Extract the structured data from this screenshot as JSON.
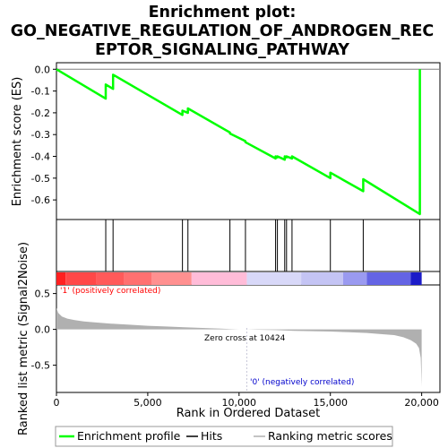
{
  "title_lines": [
    "Enrichment plot:",
    "GO_NEGATIVE_REGULATION_OF_ANDROGEN_REC",
    "EPTOR_SIGNALING_PATHWAY"
  ],
  "colors": {
    "profile": "#00ff00",
    "hits": "#000000",
    "metric": "#b0b0b0",
    "pos_label": "#ff0000",
    "neg_label": "#0000cc",
    "zero_line": "#c8c8d8"
  },
  "chart_data": {
    "type": "line",
    "xlabel": "Rank in Ordered Dataset",
    "ylabel_top": "Enrichment score (ES)",
    "ylabel_bottom": "Ranked list metric (Signal2Noise)",
    "xlim": [
      0,
      21000
    ],
    "x_ticks": [
      0,
      5000,
      10000,
      15000,
      20000
    ],
    "x_tick_labels": [
      "0",
      "5,000",
      "10,000",
      "15,000",
      "20,000"
    ],
    "es_ylim": [
      -0.69,
      0.03
    ],
    "es_ticks": [
      0.0,
      -0.1,
      -0.2,
      -0.3,
      -0.4,
      -0.5,
      -0.6
    ],
    "es_tick_labels": [
      "0.0",
      "-0.1",
      "-0.2",
      "-0.3",
      "-0.4",
      "-0.5",
      "-0.6"
    ],
    "metric_ylim": [
      -0.88,
      0.62
    ],
    "metric_ticks": [
      0.5,
      0.0,
      -0.5
    ],
    "metric_tick_labels": [
      "0.5",
      "0.0",
      "-0.5"
    ],
    "hits": [
      2700,
      3100,
      6900,
      7200,
      9500,
      10350,
      12000,
      12100,
      12500,
      12600,
      12900,
      15000,
      16800,
      19900
    ],
    "es_profile": {
      "x": [
        0,
        2700,
        2700,
        3100,
        3100,
        6900,
        6900,
        7200,
        7200,
        9500,
        9500,
        10350,
        10350,
        12000,
        12000,
        12100,
        12100,
        12500,
        12500,
        12600,
        12600,
        12900,
        12900,
        15000,
        15000,
        16800,
        16800,
        19900,
        19900
      ],
      "y": [
        0.0,
        -0.135,
        -0.07,
        -0.09,
        -0.025,
        -0.21,
        -0.19,
        -0.2,
        -0.18,
        -0.29,
        -0.295,
        -0.33,
        -0.335,
        -0.41,
        -0.4,
        -0.405,
        -0.4,
        -0.415,
        -0.4,
        -0.405,
        -0.4,
        -0.41,
        -0.4,
        -0.5,
        -0.475,
        -0.56,
        -0.505,
        -0.665,
        0.0
      ]
    },
    "metric_curve": {
      "x": [
        0,
        100,
        300,
        600,
        1000,
        1500,
        2000,
        3000,
        4000,
        5000,
        6000,
        7000,
        8000,
        9000,
        10000,
        10424,
        11000,
        12000,
        13000,
        14000,
        15000,
        16000,
        17000,
        18000,
        18500,
        19000,
        19400,
        19700,
        19850,
        19950,
        20000
      ],
      "y": [
        0.3,
        0.23,
        0.18,
        0.15,
        0.13,
        0.11,
        0.1,
        0.08,
        0.065,
        0.05,
        0.04,
        0.03,
        0.02,
        0.01,
        0.0,
        0.0,
        -0.005,
        -0.01,
        -0.02,
        -0.025,
        -0.03,
        -0.04,
        -0.05,
        -0.07,
        -0.08,
        -0.11,
        -0.15,
        -0.2,
        -0.26,
        -0.4,
        -0.8
      ]
    },
    "zero_cross_label": "Zero cross at 10424",
    "zero_cross_x": 10424,
    "pos_label": "'1' (positively correlated)",
    "neg_label": "'0' (negatively correlated)",
    "heatmap_segments": [
      {
        "x0": 0,
        "x1": 500,
        "color": "#ff2020"
      },
      {
        "x0": 500,
        "x1": 2200,
        "color": "#ff4848"
      },
      {
        "x0": 2200,
        "x1": 3700,
        "color": "#ff5a5a"
      },
      {
        "x0": 3700,
        "x1": 5200,
        "color": "#ff7070"
      },
      {
        "x0": 5200,
        "x1": 7400,
        "color": "#ff9090"
      },
      {
        "x0": 7400,
        "x1": 10424,
        "color": "#ffbcd8"
      },
      {
        "x0": 10424,
        "x1": 13400,
        "color": "#d8d8f8"
      },
      {
        "x0": 13400,
        "x1": 15700,
        "color": "#c4c4f4"
      },
      {
        "x0": 15700,
        "x1": 17000,
        "color": "#9a9af0"
      },
      {
        "x0": 17000,
        "x1": 19400,
        "color": "#6464e4"
      },
      {
        "x0": 19400,
        "x1": 20000,
        "color": "#1c1cc8"
      }
    ],
    "legend": [
      "Enrichment profile",
      "Hits",
      "Ranking metric scores"
    ]
  }
}
